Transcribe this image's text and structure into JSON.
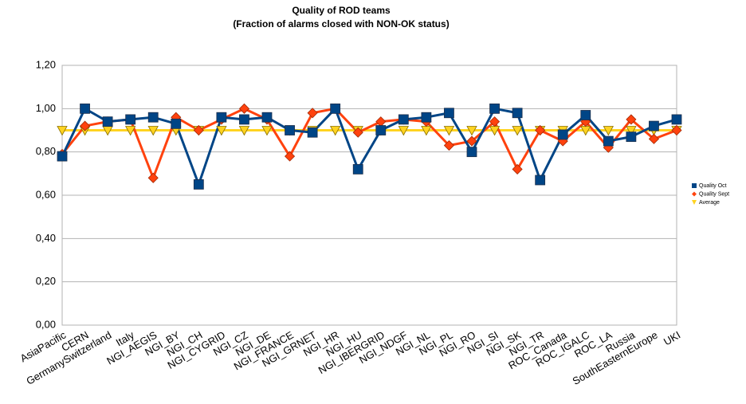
{
  "chart_data": {
    "type": "line",
    "title": "Quality of ROD teams",
    "subtitle": "(Fraction of alarms closed with NON-OK status)",
    "categories": [
      "AsiaPacific",
      "CERN",
      "GermanySwitzerland",
      "Italy",
      "NGI_AEGIS",
      "NGI_BY",
      "NGI_CH",
      "NGI_CYGRID",
      "NGI_CZ",
      "NGI_DE",
      "NGI_FRANCE",
      "NGI_GRNET",
      "NGI_HR",
      "NGI_HU",
      "NGI_IBERGRID",
      "NGI_NDGF",
      "NGI_NL",
      "NGI_PL",
      "NGI_RO",
      "NGI_SI",
      "NGI_SK",
      "NGI_TR",
      "ROC_Canada",
      "ROC_IGALC",
      "ROC_LA",
      "Russia",
      "SouthEasternEurope",
      "UKI"
    ],
    "series": [
      {
        "name": "Quality Oct",
        "color": "#004586",
        "marker": "square",
        "values": [
          0.78,
          1.0,
          0.94,
          0.95,
          0.96,
          0.93,
          0.65,
          0.96,
          0.95,
          0.96,
          0.9,
          0.89,
          1.0,
          0.72,
          0.9,
          0.95,
          0.96,
          0.98,
          0.8,
          1.0,
          0.98,
          0.67,
          0.88,
          0.97,
          0.85,
          0.87,
          0.92,
          0.95
        ]
      },
      {
        "name": "Quality Sept",
        "color": "#ff420e",
        "marker": "diamond",
        "values": [
          0.79,
          0.92,
          0.94,
          0.95,
          0.68,
          0.96,
          0.9,
          0.95,
          1.0,
          0.95,
          0.78,
          0.98,
          1.0,
          0.89,
          0.94,
          0.95,
          0.94,
          0.83,
          0.85,
          0.94,
          0.72,
          0.9,
          0.85,
          0.94,
          0.82,
          0.95,
          0.86,
          0.9
        ]
      },
      {
        "name": "Average",
        "color": "#ffd320",
        "marker": "triangle-down",
        "values": [
          0.9,
          0.9,
          0.9,
          0.9,
          0.9,
          0.9,
          0.9,
          0.9,
          0.9,
          0.9,
          0.9,
          0.9,
          0.9,
          0.9,
          0.9,
          0.9,
          0.9,
          0.9,
          0.9,
          0.9,
          0.9,
          0.9,
          0.9,
          0.9,
          0.9,
          0.9,
          0.9,
          0.9
        ]
      }
    ],
    "ylim": [
      0,
      1.2
    ],
    "yticks": [
      {
        "value": 0,
        "label": "0,00"
      },
      {
        "value": 0.2,
        "label": "0,20"
      },
      {
        "value": 0.4,
        "label": "0,40"
      },
      {
        "value": 0.6,
        "label": "0,60"
      },
      {
        "value": 0.8,
        "label": "0,80"
      },
      {
        "value": 1.0,
        "label": "1,00"
      },
      {
        "value": 1.2,
        "label": "1,20"
      }
    ],
    "grid": true,
    "legend": "right"
  }
}
